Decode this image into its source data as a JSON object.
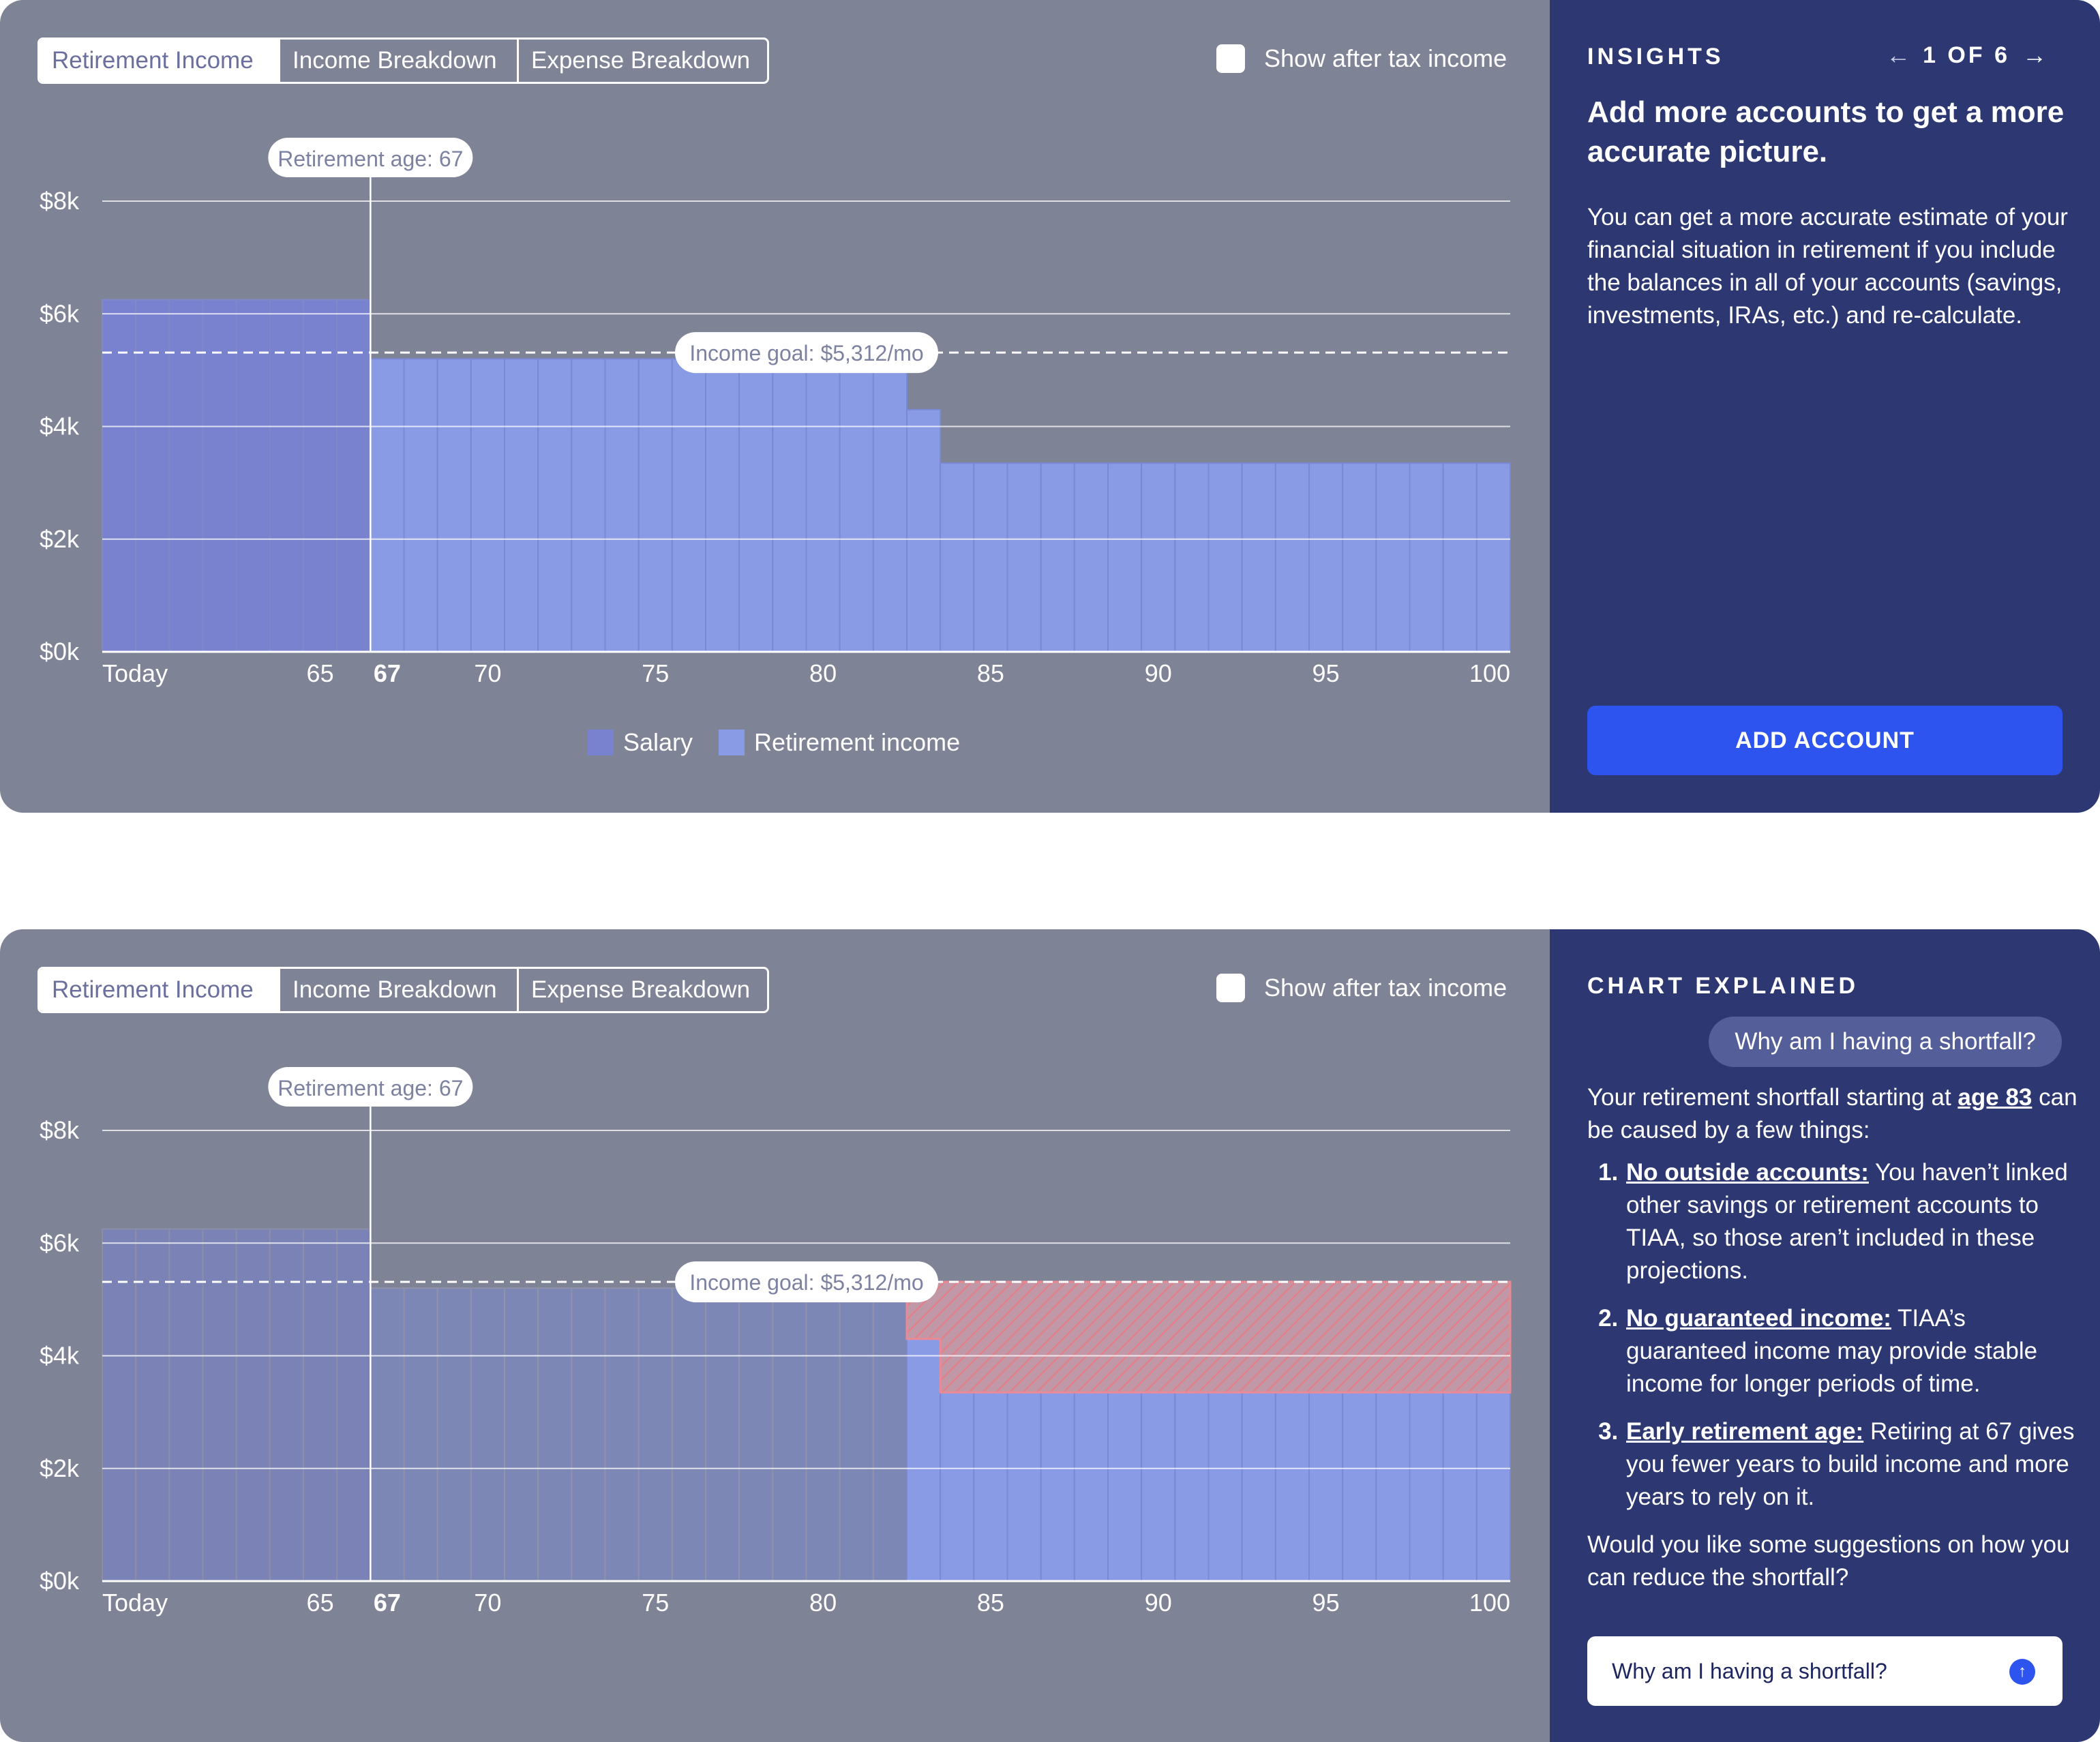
{
  "tabs": [
    "Retirement Income",
    "Income Breakdown",
    "Expense Breakdown"
  ],
  "active_tab": "Retirement Income",
  "checkbox": {
    "label": "Show after tax income",
    "checked": false
  },
  "legend": [
    {
      "name": "Salary",
      "color": "#7882cf"
    },
    {
      "name": "Retirement income",
      "color": "#8a9be6"
    }
  ],
  "colors": {
    "panel_bg": "#7f8396",
    "sidebar_bg": "#2d3872",
    "salary": "#7882cf",
    "retirement": "#8a9be6",
    "shortfall": "#e8808a",
    "button": "#2e54ef"
  },
  "chart_data": {
    "type": "bar",
    "xlabel": "",
    "ylabel": "",
    "yticks": [
      "$0k",
      "$2k",
      "$4k",
      "$6k",
      "$8k"
    ],
    "ylim": [
      0,
      8000
    ],
    "x_tick_labels": [
      "Today",
      "65",
      "67",
      "70",
      "75",
      "80",
      "85",
      "90",
      "95",
      "100"
    ],
    "retirement_age_label": "Retirement age: 67",
    "retirement_age": 67,
    "income_goal_label": "Income goal: $5,312/mo",
    "income_goal": 5312,
    "series": [
      {
        "name": "Salary",
        "ages": [
          59,
          60,
          61,
          62,
          63,
          64,
          65,
          66
        ],
        "values": [
          6250,
          6250,
          6250,
          6250,
          6250,
          6250,
          6250,
          6250
        ]
      },
      {
        "name": "Retirement income",
        "ages": [
          67,
          68,
          69,
          70,
          71,
          72,
          73,
          74,
          75,
          76,
          77,
          78,
          79,
          80,
          81,
          82,
          83,
          84,
          85,
          86,
          87,
          88,
          89,
          90,
          91,
          92,
          93,
          94,
          95,
          96,
          97,
          98,
          99,
          100
        ],
        "values": [
          5200,
          5200,
          5200,
          5200,
          5200,
          5200,
          5200,
          5200,
          5200,
          5200,
          5200,
          5200,
          5200,
          5200,
          5200,
          5200,
          4300,
          3350,
          3350,
          3350,
          3350,
          3350,
          3350,
          3350,
          3350,
          3350,
          3350,
          3350,
          3350,
          3350,
          3350,
          3350,
          3350,
          3350
        ]
      }
    ],
    "shortfall_start_age": 83
  },
  "insights": {
    "heading": "INSIGHTS",
    "page": "1 OF 6",
    "title": "Add more accounts to get a more accurate picture.",
    "body": "You can get a more accurate estimate of your financial situation in retirement if you include the balances in all of your accounts (savings, investments, IRAs, etc.) and re-calculate.",
    "button": "ADD ACCOUNT"
  },
  "explained": {
    "heading": "CHART EXPLAINED",
    "question_chip": "Why am I having a shortfall?",
    "intro_before": "Your retirement shortfall starting at ",
    "intro_link": "age 83",
    "intro_after": " can be caused by a few things:",
    "reasons": [
      {
        "title": "No outside accounts:",
        "text": " You haven’t linked other savings or retirement accounts to TIAA, so those aren’t included in these projections."
      },
      {
        "title": "No guaranteed income:",
        "text": " TIAA’s guaranteed income may provide stable income for longer periods of time."
      },
      {
        "title": "Early retirement age:",
        "text": " Retiring at 67 gives you fewer years to build income and more years to rely on it."
      }
    ],
    "closing": "Would you like some suggestions on how you can reduce the shortfall?",
    "input_value": "Why am I having a shortfall?"
  }
}
